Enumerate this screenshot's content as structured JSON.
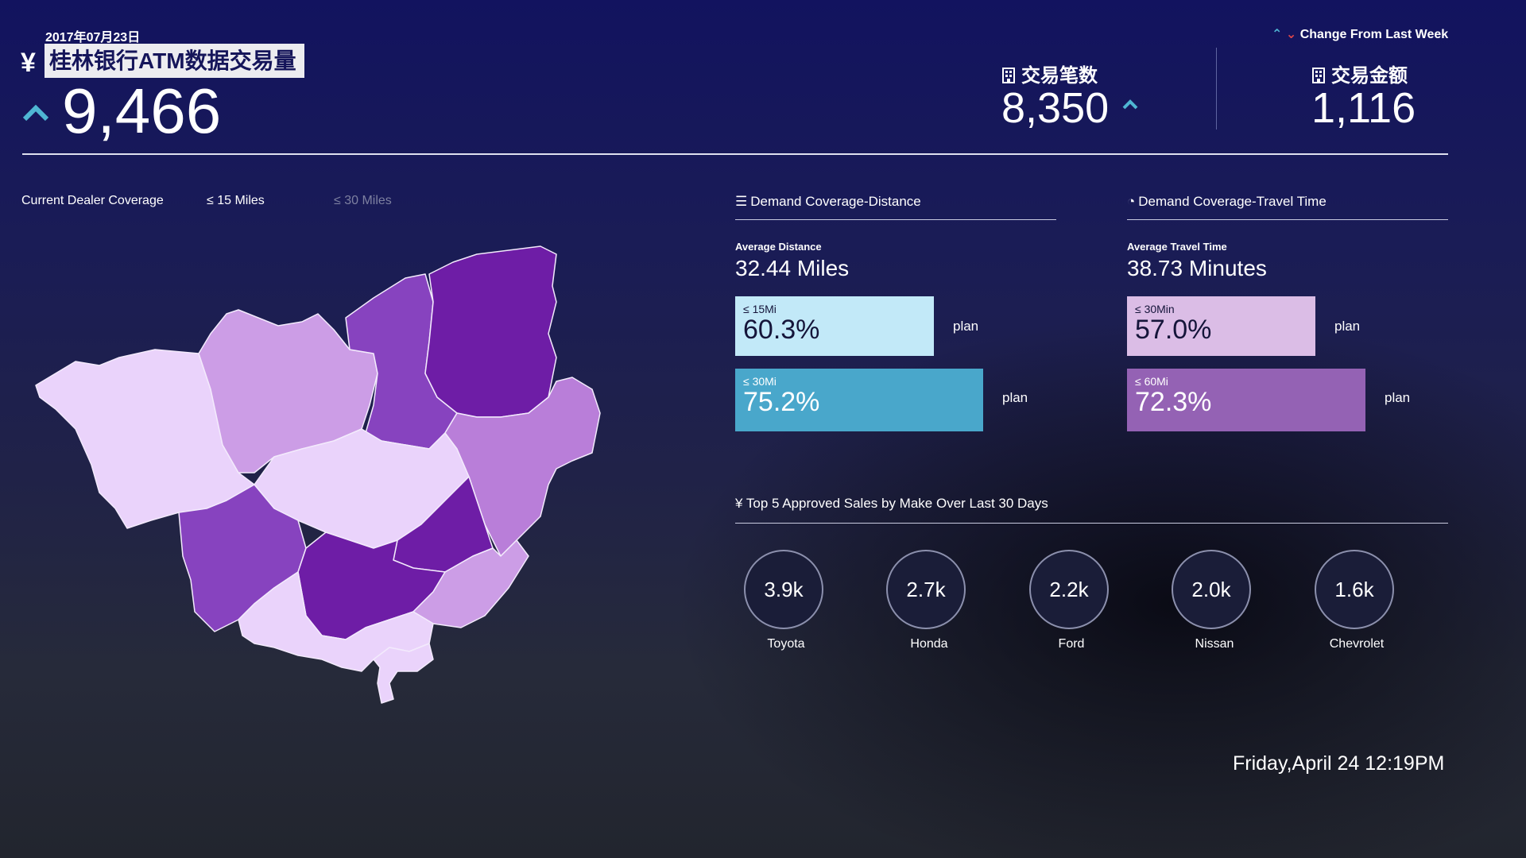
{
  "header": {
    "date": "2017年07月23日",
    "currency_symbol": "¥",
    "title": "桂林银行ATM数据交易量",
    "main_value": "9,466",
    "legend_label": "Change From Last Week"
  },
  "kpis": [
    {
      "label": "交易笔数",
      "value": "8,350",
      "trend": "up"
    },
    {
      "label": "交易金额",
      "value": "1,116",
      "trend": "none"
    }
  ],
  "coverage": {
    "title": "Current Dealer Coverage",
    "tabs": [
      "≤ 15 Miles",
      "≤ 30 Miles"
    ],
    "active_tab": "≤ 15 Miles"
  },
  "distance_panel": {
    "title": "Demand Coverage-Distance",
    "avg_label": "Average Distance",
    "avg_value": "32.44 Miles",
    "bars": [
      {
        "label": "≤ 15Mi",
        "value": "60.3%",
        "plan": "plan",
        "fraction": 0.603,
        "color": "#c2e9f8",
        "text_color": "#15153a"
      },
      {
        "label": "≤ 30Mi",
        "value": "75.2%",
        "plan": "plan",
        "fraction": 0.752,
        "color": "#49a7cb",
        "text_color": "#ffffff"
      }
    ]
  },
  "time_panel": {
    "title": "Demand Coverage-Travel Time",
    "avg_label": "Average Travel Time",
    "avg_value": "38.73 Minutes",
    "bars": [
      {
        "label": "≤ 30Min",
        "value": "57.0%",
        "plan": "plan",
        "fraction": 0.57,
        "color": "#dbbde6",
        "text_color": "#15153a"
      },
      {
        "label": "≤ 60Mi",
        "value": "72.3%",
        "plan": "plan",
        "fraction": 0.723,
        "color": "#9462b4",
        "text_color": "#ffffff"
      }
    ]
  },
  "sales": {
    "title": "Top 5 Approved Sales by Make Over Last 30 Days",
    "currency_symbol": "¥",
    "items": [
      {
        "value": "3.9k",
        "make": "Toyota"
      },
      {
        "value": "2.7k",
        "make": "Honda"
      },
      {
        "value": "2.2k",
        "make": "Ford"
      },
      {
        "value": "2.0k",
        "make": "Nissan"
      },
      {
        "value": "1.6k",
        "make": "Chevrolet"
      }
    ]
  },
  "clock": "Friday,April 24 12:19PM",
  "colors": {
    "region_lightest": "#ead3fb",
    "region_light": "#cc9de6",
    "region_mid": "#8743bf",
    "region_dark": "#6e1da6",
    "accent_up": "#4fb6d3",
    "accent_down": "#e2474a"
  }
}
